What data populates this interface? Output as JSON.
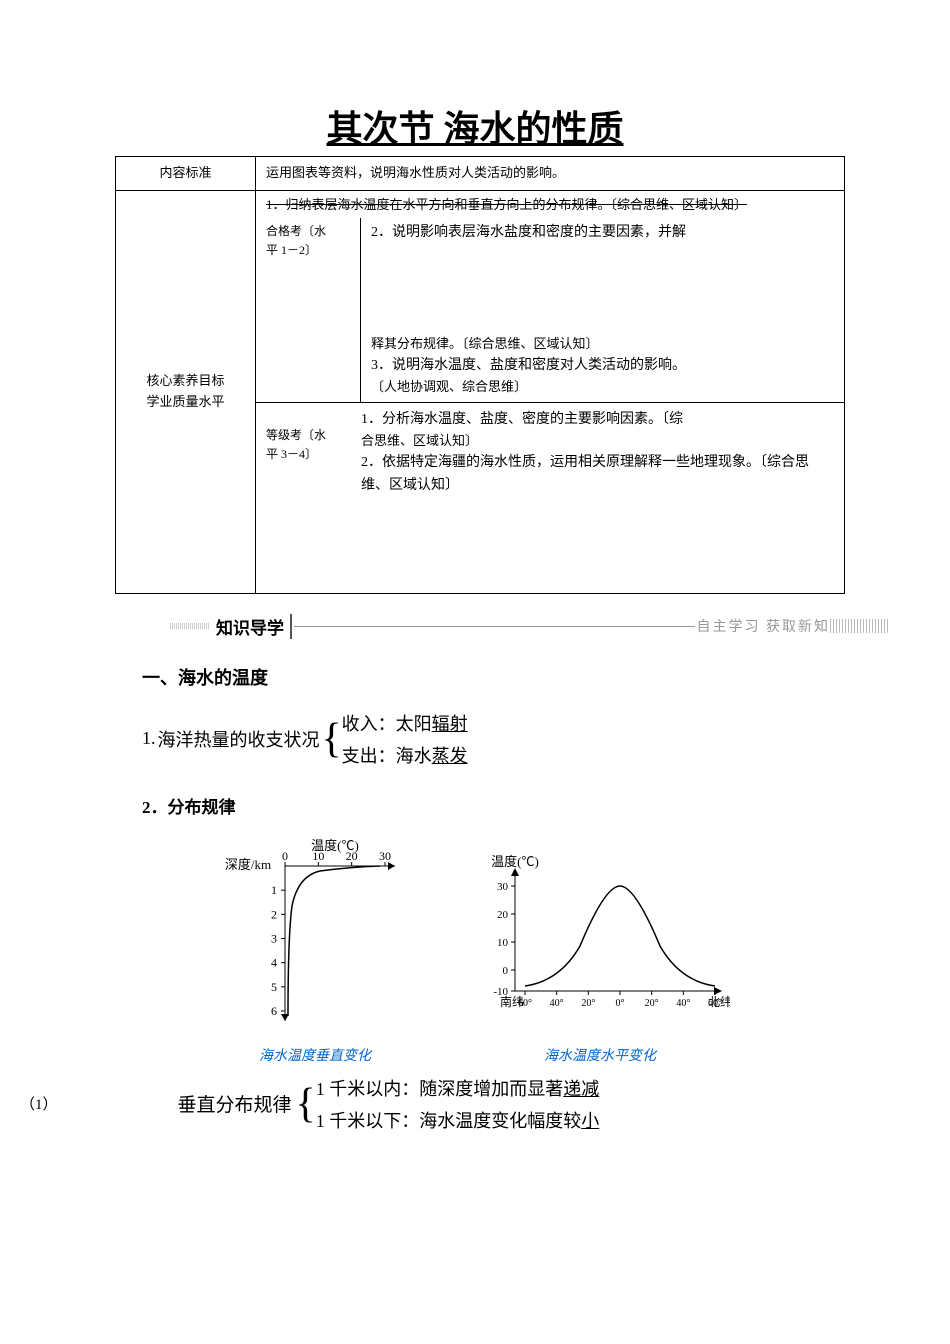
{
  "title": "其次节  海水的性质",
  "table": {
    "row1_label": "内容标准",
    "row1_content": "运用图表等资料，说明海水性质对人类活动的影响。",
    "row2_label": "核心素养目标\n学业质量水平",
    "cell_a_label_prefix": "合格考〔水",
    "cell_a_label_suffix": "平 1－2〕",
    "cell_a_struck": "1．归纳表层海水温度在水平方向和垂直方向上的分布规律。〔综合思维、区域认知〕",
    "cell_a_line2": "2．说明影响表层海水盐度和密度的主要因素，并解",
    "cell_b_line1": "释其分布规律。〔综合思维、区域认知〕",
    "cell_b_line2": "3．说明海水温度、盐度和密度对人类活动的影响。",
    "cell_b_line3": "〔人地协调观、综合思维〕",
    "cell_c_label_prefix": "等级考〔水",
    "cell_c_label_suffix": "平 3－4〕",
    "cell_c_line1": "1．分析海水温度、盐度、密度的主要影响因素。〔综",
    "cell_c_line1b": "合思维、区域认知〕",
    "cell_c_line2": "2．依据特定海疆的海水性质，运用相关原理解释一些地理现象。〔综合思维、区域认知〕"
  },
  "guide": {
    "label": "知识导学",
    "right_label": "自主学习  获取新知"
  },
  "sec1": {
    "heading": "一、海水的温度",
    "item1_num": "1.",
    "item1_label": "海洋热量的收支状况",
    "brace1_a": "收入：太阳",
    "brace1_a_u": "辐射",
    "brace1_b": "支出：海水",
    "brace1_b_u": "蒸发",
    "item2": "2．分布规律"
  },
  "chart1": {
    "ylabel": "深度/km",
    "xlabel": "温度(℃)",
    "xticks": [
      "0",
      "10",
      "20",
      "30"
    ],
    "yticks": [
      "1",
      "2",
      "3",
      "4",
      "5",
      "6"
    ],
    "caption": "海水温度垂直变化",
    "curve_color": "#000000",
    "axis_color": "#000000",
    "text_color": "#000000",
    "caption_color": "#0066cc"
  },
  "chart2": {
    "ylabel": "温度(℃)",
    "yticks": [
      "30",
      "20",
      "10",
      "0",
      "-10"
    ],
    "xlabel_left": "南纬",
    "xlabel_right": "北纬",
    "xticks": [
      "60°",
      "40°",
      "20°",
      "0°",
      "20°",
      "40°",
      "60°"
    ],
    "caption": "海水温度水平变化",
    "curve_color": "#000000",
    "axis_color": "#000000",
    "text_color": "#000000",
    "caption_color": "#0066cc"
  },
  "bottom": {
    "paren": "（1）",
    "label": "垂直分布规律",
    "line_a_pre": "1 千米以内：随深度增加而显著",
    "line_a_u": "递减",
    "line_b_pre": "1 千米以下：海水温度变化幅度较",
    "line_b_u": "小"
  }
}
